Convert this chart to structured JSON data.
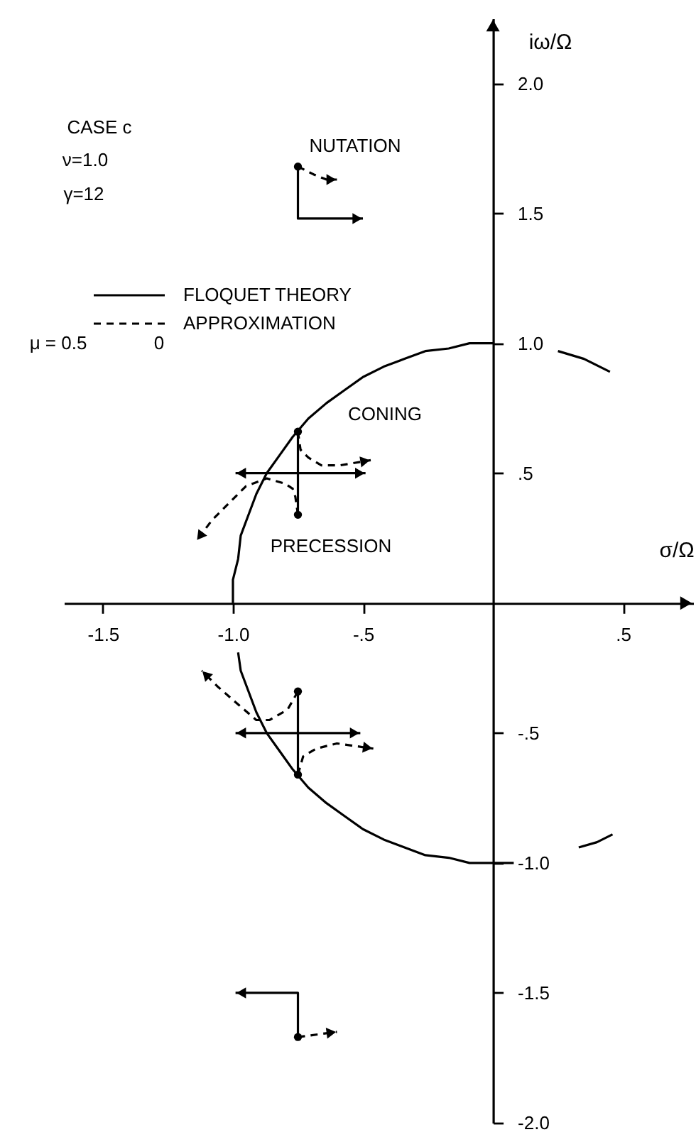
{
  "chart_data": {
    "type": "line",
    "xlabel": "σ/Ω",
    "ylabel": "iω/Ω",
    "xlim": [
      -1.65,
      0.77
    ],
    "ylim": [
      -2.0,
      2.25
    ],
    "xticks": [
      -1.5,
      {
        "value": -1,
        "label": "-1.0"
      },
      {
        "value": -0.5,
        "label": "-.5"
      },
      {
        "value": 0.5,
        "label": ".5"
      }
    ],
    "yticks": [
      {
        "value": 2,
        "label": "2.0"
      },
      1.5,
      {
        "value": 1,
        "label": "1.0"
      },
      {
        "value": 0.5,
        "label": ".5"
      },
      {
        "value": -0.5,
        "label": "-.5"
      },
      {
        "value": -1,
        "label": "-1.0"
      },
      -1.5,
      {
        "value": -2,
        "label": "-2.0"
      }
    ],
    "legend": "top left",
    "annotations": [
      "CASE c",
      "ν=1.0",
      "γ=12",
      "μ = 0.5",
      "0",
      "NUTATION",
      "CONING",
      "PRECESSION"
    ],
    "series": [
      {
        "color": "#000000",
        "line_style": "solid",
        "x": [
          0,
          -0.09,
          -0.17,
          -0.26,
          -0.34,
          -0.42,
          -0.5,
          -0.57,
          -0.64,
          -0.71,
          -0.77,
          -0.82,
          -0.87,
          -0.91,
          -0.94,
          -0.97,
          -0.98,
          -1.0,
          -1.0
        ],
        "values": [
          1.0,
          1.0,
          0.98,
          0.97,
          0.94,
          0.91,
          0.87,
          0.82,
          0.77,
          0.71,
          0.64,
          0.57,
          0.5,
          0.42,
          0.34,
          0.26,
          0.17,
          0.09,
          0
        ]
      },
      {
        "color": "#000000",
        "line_style": "solid",
        "x": [
          -0.98,
          -0.97,
          -0.94,
          -0.91,
          -0.87,
          -0.82,
          -0.77,
          -0.71,
          -0.64,
          -0.57,
          -0.5,
          -0.42,
          -0.34,
          -0.26,
          -0.17,
          -0.09,
          0,
          0.08
        ],
        "values": [
          -0.19,
          -0.26,
          -0.34,
          -0.42,
          -0.5,
          -0.57,
          -0.64,
          -0.71,
          -0.77,
          -0.82,
          -0.87,
          -0.91,
          -0.94,
          -0.97,
          -0.98,
          -1.0,
          -1.0,
          -1.0
        ]
      },
      {
        "color": "#000000",
        "line_style": "solid",
        "x": [
          0.25,
          0.35,
          0.45
        ],
        "values": [
          0.97,
          0.94,
          0.89
        ]
      },
      {
        "color": "#000000",
        "line_style": "solid",
        "x": [
          0.33,
          0.4,
          0.46
        ],
        "values": [
          -0.94,
          -0.92,
          -0.89
        ]
      },
      {
        "name": "FLOQUET THEORY",
        "color": "#000000",
        "line_style": "solid",
        "x": [
          -0.75,
          -0.75,
          -0.5,
          null,
          -0.75,
          -0.75,
          -0.49,
          null,
          -0.75,
          -0.75,
          -0.99,
          null,
          -0.75,
          -0.75,
          -0.99,
          null,
          -0.75,
          -0.75,
          -0.51,
          null,
          -0.75,
          -0.75,
          -0.99
        ],
        "values": [
          1.68,
          1.48,
          1.48,
          null,
          0.66,
          0.5,
          0.5,
          null,
          0.34,
          0.5,
          0.5,
          null,
          -0.34,
          -0.5,
          -0.5,
          null,
          -0.66,
          -0.5,
          -0.5,
          null,
          -1.67,
          -1.5,
          -1.5
        ]
      },
      {
        "name": "APPROXIMATION",
        "color": "#000000",
        "line_style": "dashed",
        "x": [
          -0.75,
          -0.69,
          -0.64,
          -0.6,
          null,
          -0.75,
          -0.74,
          -0.71,
          -0.66,
          -0.59,
          -0.47,
          null,
          -0.75,
          -0.76,
          -0.77,
          -0.8,
          -0.87,
          -0.95,
          -1.02,
          -1.08,
          -1.14,
          null,
          -0.75,
          -0.79,
          -0.86,
          -0.91,
          -0.98,
          -1.06,
          -1.12,
          null,
          -0.75,
          -0.73,
          -0.68,
          -0.6,
          -0.53,
          -0.46,
          null,
          -0.75,
          -0.6
        ],
        "values": [
          1.68,
          1.65,
          1.63,
          1.63,
          null,
          0.66,
          0.59,
          0.56,
          0.53,
          0.53,
          0.55,
          null,
          0.34,
          0.41,
          0.44,
          0.46,
          0.48,
          0.45,
          0.38,
          0.32,
          0.24,
          null,
          -0.34,
          -0.41,
          -0.45,
          -0.45,
          -0.39,
          -0.32,
          -0.26,
          null,
          -0.66,
          -0.59,
          -0.56,
          -0.54,
          -0.55,
          -0.56,
          null,
          -1.67,
          -1.65
        ]
      },
      {
        "type": "scatter",
        "marker": "circle",
        "color": "#000000",
        "x": [
          -0.75,
          -0.75,
          -0.75,
          -0.75,
          -0.75,
          -0.75
        ],
        "values": [
          1.68,
          0.66,
          0.34,
          -0.34,
          -0.66,
          -1.67
        ]
      }
    ]
  }
}
